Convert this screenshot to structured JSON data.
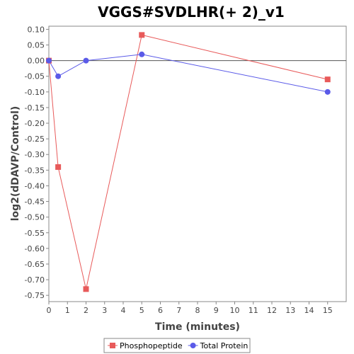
{
  "chart_data": {
    "type": "line",
    "title": "VGGS#SVDLHR(+ 2)_v1",
    "xlabel": "Time (minutes)",
    "ylabel": "log2(dDAVP/Control)",
    "xlim": [
      0,
      16
    ],
    "ylim": [
      -0.77,
      0.11
    ],
    "xticks": [
      0,
      1,
      2,
      3,
      4,
      5,
      6,
      7,
      8,
      9,
      10,
      11,
      12,
      13,
      14,
      15
    ],
    "yticks": [
      0.1,
      0.05,
      0.0,
      -0.05,
      -0.1,
      -0.15,
      -0.2,
      -0.25,
      -0.3,
      -0.35,
      -0.4,
      -0.45,
      -0.5,
      -0.55,
      -0.6,
      -0.65,
      -0.7,
      -0.75
    ],
    "grid": false,
    "zero_line": true,
    "legend_position": "bottom",
    "series": [
      {
        "name": "Phosphopeptide",
        "color": "#e85a5a",
        "marker": "square",
        "x": [
          0,
          0.5,
          2,
          5,
          15
        ],
        "y": [
          0.0,
          -0.34,
          -0.73,
          0.082,
          -0.06
        ]
      },
      {
        "name": "Total Protein",
        "color": "#5a5ae8",
        "marker": "circle",
        "x": [
          0,
          0.5,
          2,
          5,
          15
        ],
        "y": [
          0.0,
          -0.05,
          0.0,
          0.02,
          -0.1
        ]
      }
    ]
  }
}
